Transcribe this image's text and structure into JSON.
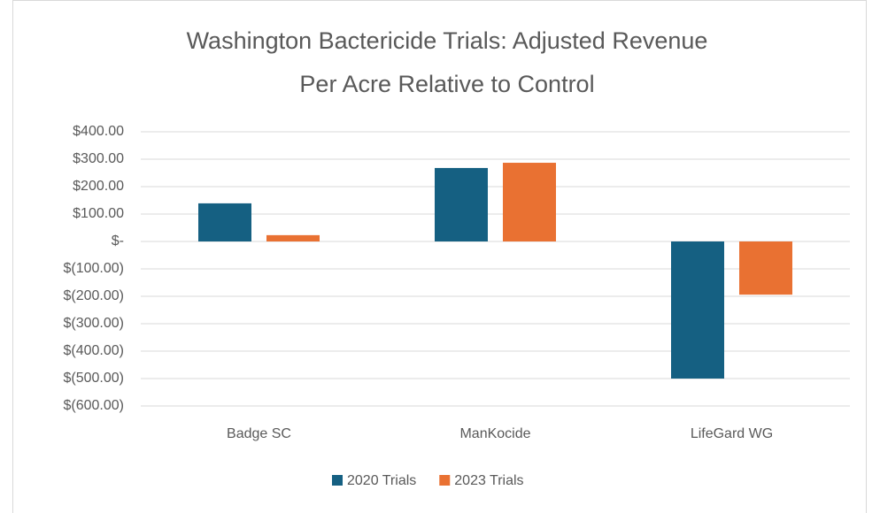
{
  "chart_data": {
    "type": "bar",
    "title": [
      "Washington Bactericide Trials: Adjusted Revenue",
      "Per Acre Relative to Control"
    ],
    "categories": [
      "Badge SC",
      "ManKocide",
      "LifeGard WG"
    ],
    "series": [
      {
        "name": "2020 Trials",
        "color": "#156082",
        "values": [
          139,
          268,
          -500
        ]
      },
      {
        "name": "2023 Trials",
        "color": "#e97132",
        "values": [
          23,
          287,
          -194
        ]
      }
    ],
    "ylim": [
      -600,
      400
    ],
    "yticks": [
      {
        "value": 400,
        "label": "$400.00"
      },
      {
        "value": 300,
        "label": "$300.00"
      },
      {
        "value": 200,
        "label": "$200.00"
      },
      {
        "value": 100,
        "label": "$100.00"
      },
      {
        "value": 0,
        "label": "$-"
      },
      {
        "value": -100,
        "label": "$(100.00)"
      },
      {
        "value": -200,
        "label": "$(200.00)"
      },
      {
        "value": -300,
        "label": "$(300.00)"
      },
      {
        "value": -400,
        "label": "$(400.00)"
      },
      {
        "value": -500,
        "label": "$(500.00)"
      },
      {
        "value": -600,
        "label": "$(600.00)"
      }
    ],
    "grid": true,
    "legend": "bottom"
  }
}
